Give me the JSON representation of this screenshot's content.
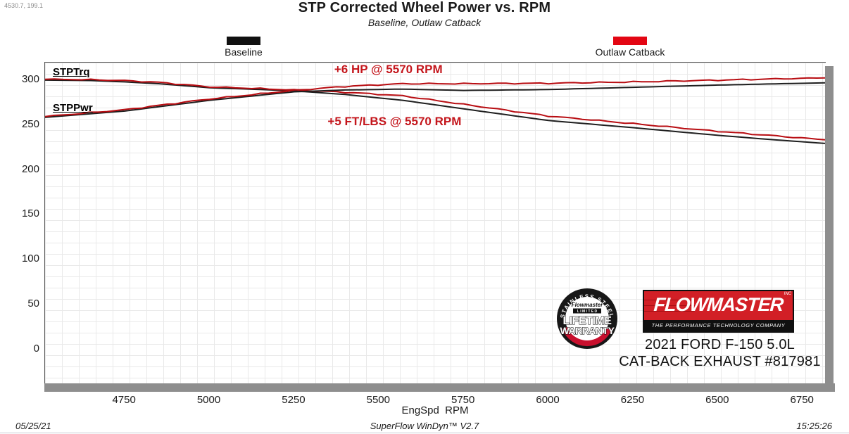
{
  "cursor_readout": "4530.7, 199.1",
  "header": {
    "title": "STP Corrected Wheel Power vs. RPM",
    "subtitle": "Baseline, Outlaw Catback"
  },
  "legend": {
    "baseline": {
      "label": "Baseline",
      "color": "#111111"
    },
    "outlaw": {
      "label": "Outlaw Catback",
      "color": "#e30613"
    }
  },
  "curve_labels": {
    "torque": "STPTrq",
    "power": "STPPwr"
  },
  "branding": {
    "vehicle_line1": "2021 FORD F-150 5.0L",
    "vehicle_line2": "CAT-BACK EXHAUST #817981",
    "logo_name": "FLOWMASTER",
    "logo_inc": "INC",
    "logo_tagline": "THE PERFORMANCE TECHNOLOGY COMPANY",
    "badge_arc_top": "STAINLESS STEEL",
    "badge_script": "Flowmaster",
    "badge_limited": "L I M I T E D",
    "badge_line1": "LIFETIME",
    "badge_line2": "WARRANTY"
  },
  "footer": {
    "date": "05/25/21",
    "app": "SuperFlow WinDyn™ V2.7",
    "time": "15:25:26"
  },
  "chart_data": {
    "type": "line",
    "title": "STP Corrected Wheel Power vs. RPM",
    "subtitle": "Baseline, Outlaw Catback",
    "xlabel": "EngSpd  RPM",
    "ylabel": "",
    "xlim": [
      4515,
      6816
    ],
    "ylim": [
      -38.5,
      319.5
    ],
    "x_ticks": [
      4750,
      5000,
      5250,
      5500,
      5750,
      6000,
      6250,
      6500,
      6750
    ],
    "y_ticks": [
      0,
      50,
      100,
      150,
      200,
      250,
      300
    ],
    "grid": true,
    "legend_position": "top",
    "line_colors": {
      "baseline": "#1f1f1f",
      "outlaw": "#b80d12"
    },
    "series": [
      {
        "name": "STPTrq Baseline",
        "group": "torque",
        "variant": "baseline",
        "color": "#1f1f1f",
        "wiggle": false,
        "x": [
          4515,
          4650,
          4750,
          4850,
          5000,
          5150,
          5250,
          5400,
          5570,
          5750,
          6000,
          6250,
          6500,
          6650,
          6816
        ],
        "y": [
          300,
          299.5,
          298,
          296,
          291.5,
          289.5,
          288,
          284,
          277.5,
          268,
          255,
          247,
          238.5,
          234,
          229.5
        ]
      },
      {
        "name": "STPTrq Outlaw Catback",
        "group": "torque",
        "variant": "outlaw",
        "color": "#b80d12",
        "wiggle": true,
        "x": [
          4515,
          4650,
          4750,
          4850,
          5000,
          5150,
          5250,
          5400,
          5570,
          5750,
          6000,
          6250,
          6500,
          6650,
          6816
        ],
        "y": [
          301,
          300.5,
          299.5,
          297.5,
          292.5,
          290.5,
          289,
          286.5,
          282.5,
          273,
          260,
          251.5,
          243,
          238.5,
          233.5
        ]
      },
      {
        "name": "STPPwr Baseline",
        "group": "power",
        "variant": "baseline",
        "color": "#1f1f1f",
        "wiggle": false,
        "x": [
          4515,
          4750,
          5000,
          5250,
          5400,
          5570,
          5750,
          6000,
          6250,
          6500,
          6816
        ],
        "y": [
          258.5,
          265.5,
          277.5,
          287,
          289,
          290,
          288.5,
          289.5,
          292,
          294.5,
          297
        ]
      },
      {
        "name": "STPPwr Outlaw Catback",
        "group": "power",
        "variant": "outlaw",
        "color": "#b80d12",
        "wiggle": true,
        "x": [
          4515,
          4750,
          5000,
          5250,
          5400,
          5570,
          5750,
          6000,
          6250,
          6500,
          6816
        ],
        "y": [
          259.5,
          267,
          279,
          288.5,
          293,
          296,
          296,
          296.5,
          298,
          300,
          302.5
        ]
      }
    ],
    "annotations": [
      {
        "id": "hp",
        "text": "+6 HP @ 5570 RPM",
        "x": 5530,
        "y": 311
      },
      {
        "id": "tq",
        "text": "+5 FT/LBS @ 5570 RPM",
        "x": 5548,
        "y": 253
      }
    ]
  }
}
